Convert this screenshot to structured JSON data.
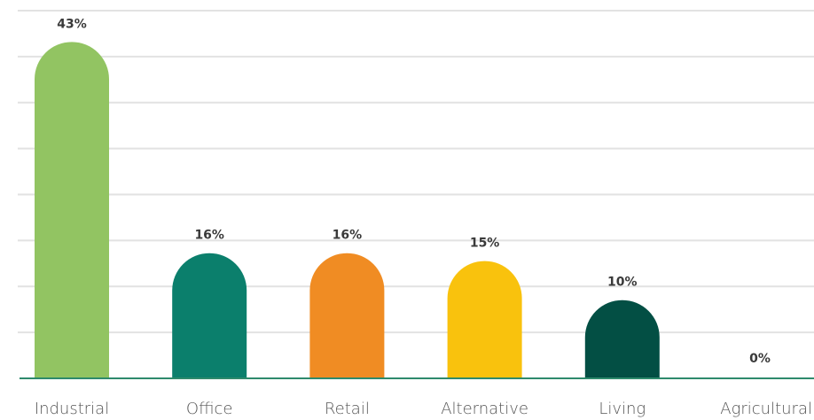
{
  "chart_data": {
    "type": "bar",
    "categories": [
      "Industrial",
      "Office",
      "Retail",
      "Alternative",
      "Living",
      "Agricultural"
    ],
    "values": [
      43,
      16,
      16,
      15,
      10,
      0
    ],
    "value_labels": [
      "43%",
      "16%",
      "16%",
      "15%",
      "10%",
      "0%"
    ],
    "colors": [
      "#92c462",
      "#0b7f6c",
      "#f08c23",
      "#f9c20d",
      "#034f44",
      "#034f44"
    ],
    "ylim": [
      0,
      47
    ],
    "grid": true,
    "legend": "none",
    "title": "",
    "xlabel": "",
    "ylabel": ""
  }
}
